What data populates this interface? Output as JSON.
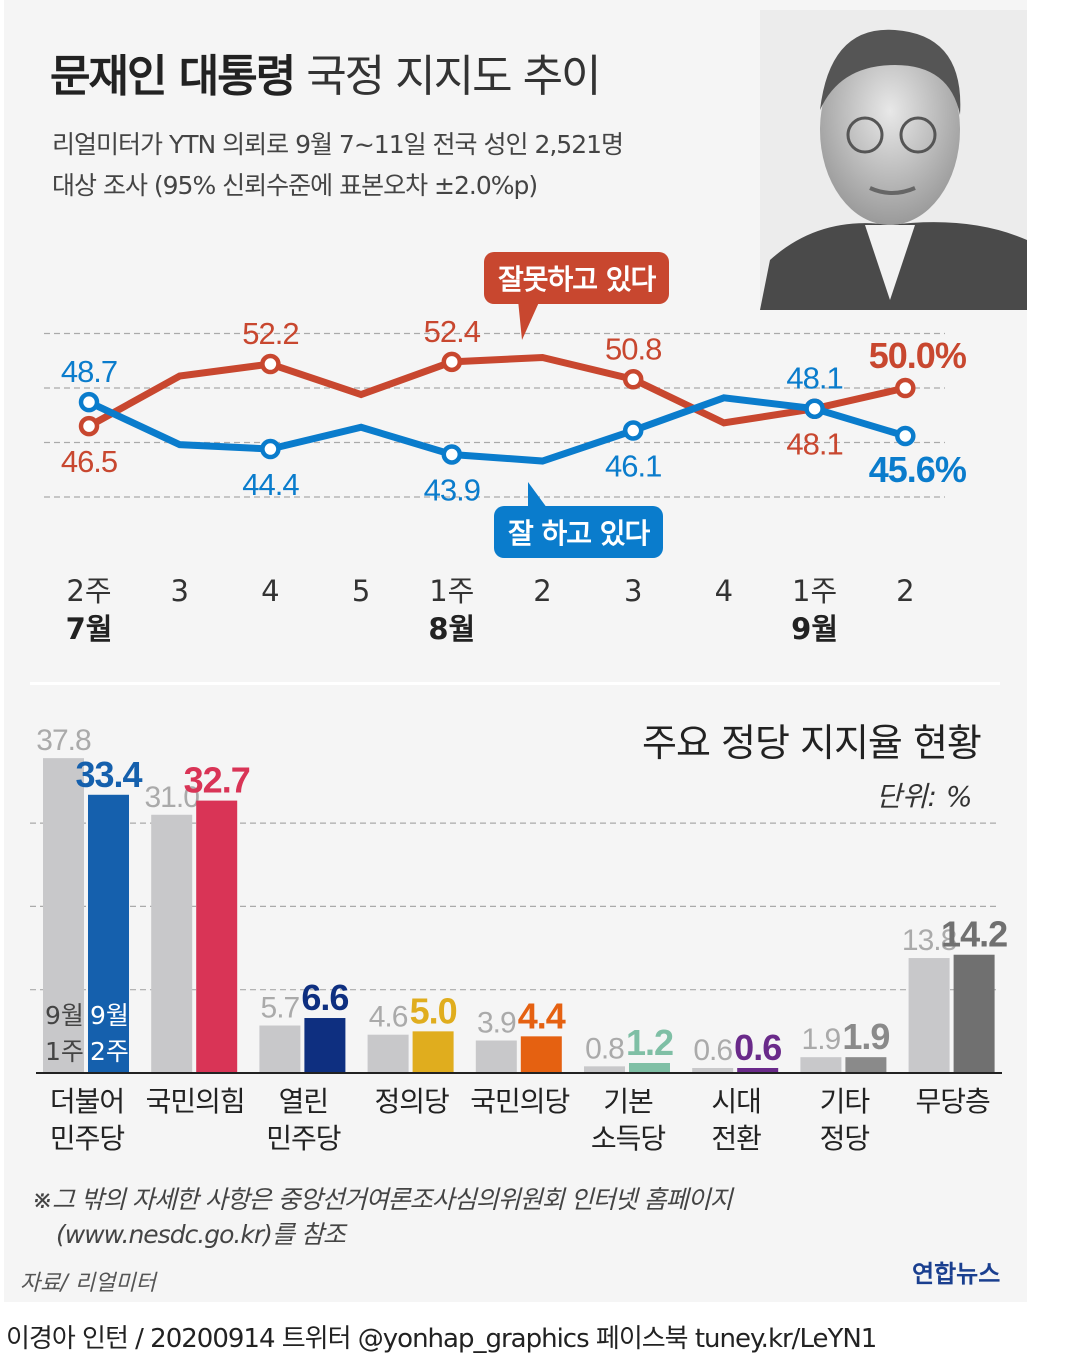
{
  "header": {
    "title_bold": "문재인 대통령",
    "title_light": "국정 지지도 추이",
    "subtitle_line1": "리얼미터가 YTN 의뢰로 9월 7~11일 전국 성인 2,521명",
    "subtitle_line2": "대상 조사 (95% 신뢰수준에 표본오차 ±2.0%p)"
  },
  "chart_data": [
    {
      "type": "line",
      "categories": [
        "2주",
        "3",
        "4",
        "5",
        "1주",
        "2",
        "3",
        "4",
        "1주",
        "2"
      ],
      "month_labels": [
        {
          "at": 0,
          "label": "7월"
        },
        {
          "at": 4,
          "label": "8월"
        },
        {
          "at": 8,
          "label": "9월"
        }
      ],
      "ylim": [
        40,
        55
      ],
      "grid": true,
      "series": [
        {
          "name": "잘못하고 있다",
          "color": "#c8472f",
          "values": [
            46.5,
            51.1,
            52.2,
            49.4,
            52.4,
            52.8,
            50.8,
            46.8,
            48.1,
            50.0
          ],
          "labels": [
            "46.5",
            null,
            "52.2",
            null,
            "52.4",
            null,
            "50.8",
            null,
            "48.1",
            "50.0%"
          ]
        },
        {
          "name": "잘 하고 있다",
          "color": "#0a7ccc",
          "values": [
            48.7,
            44.8,
            44.4,
            46.4,
            43.9,
            43.3,
            46.1,
            49.1,
            48.1,
            45.6
          ],
          "labels": [
            "48.7",
            null,
            "44.4",
            null,
            "43.9",
            null,
            "46.1",
            null,
            "48.1",
            "45.6%"
          ]
        }
      ]
    },
    {
      "type": "bar",
      "title": "주요 정당 지지율 현황",
      "unit_label": "단위: %",
      "categories": [
        [
          "더불어",
          "민주당"
        ],
        [
          "국민의힘"
        ],
        [
          "열린",
          "민주당"
        ],
        [
          "정의당"
        ],
        [
          "국민의당"
        ],
        [
          "기본",
          "소득당"
        ],
        [
          "시대",
          "전환"
        ],
        [
          "기타",
          "정당"
        ],
        [
          "무당층"
        ]
      ],
      "series_labels": [
        [
          "9월",
          "1주"
        ],
        [
          "9월",
          "2주"
        ]
      ],
      "ylim": [
        0,
        40
      ],
      "grid": true,
      "prev_color": "#c8c8ca",
      "series": [
        {
          "values": [
            37.8,
            31.0,
            5.7,
            4.6,
            3.9,
            0.8,
            0.6,
            1.9,
            13.8
          ]
        },
        {
          "values": [
            33.4,
            32.7,
            6.6,
            5.0,
            4.4,
            1.2,
            0.6,
            1.9,
            14.2
          ],
          "colors": [
            "#1560ad",
            "#d93456",
            "#0e2f80",
            "#e0ad1e",
            "#e56111",
            "#7fbfa5",
            "#6a2a8a",
            "#8a8a8a",
            "#707070"
          ]
        }
      ]
    }
  ],
  "footer": {
    "note_line1": "※그 밖의 자세한 사항은 중앙선거여론조사심의위원회 인터넷 홈페이지",
    "note_line2": "(www.nesdc.go.kr)를 참조",
    "source": "자료/ 리얼미터",
    "logo": "연합뉴스",
    "credit": "이경아 인턴 / 20200914  트위터 @yonhap_graphics  페이스북 tuney.kr/LeYN1"
  }
}
